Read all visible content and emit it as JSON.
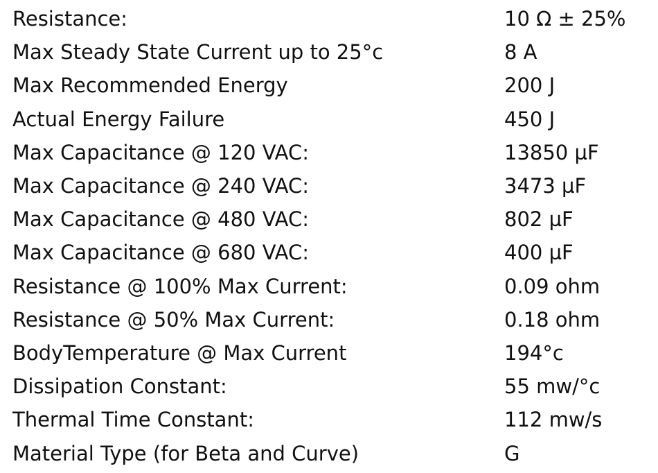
{
  "table": {
    "rows": [
      [
        "Resistance:",
        "10 Ω ± 25%"
      ],
      [
        "Max Steady State Current up to 25°c",
        "8 A"
      ],
      [
        "Max Recommended Energy",
        "200 J"
      ],
      [
        "Actual Energy Failure",
        "450 J"
      ],
      [
        "Max Capacitance @ 120 VAC:",
        "13850 µF"
      ],
      [
        "Max Capacitance @ 240 VAC:",
        "3473 µF"
      ],
      [
        "Max Capacitance @ 480 VAC:",
        "802 µF"
      ],
      [
        "Max Capacitance @ 680 VAC:",
        "400 µF"
      ],
      [
        "Resistance @ 100% Max Current:",
        "0.09 ohm"
      ],
      [
        "Resistance @ 50% Max Current:",
        "0.18 ohm"
      ],
      [
        "BodyTemperature @ Max Current",
        "194°c"
      ],
      [
        "Dissipation Constant:",
        "55 mw/°c"
      ],
      [
        "Thermal Time Constant:",
        "112 mw/s"
      ],
      [
        "Material Type (for Beta and Curve)",
        "G"
      ]
    ]
  }
}
